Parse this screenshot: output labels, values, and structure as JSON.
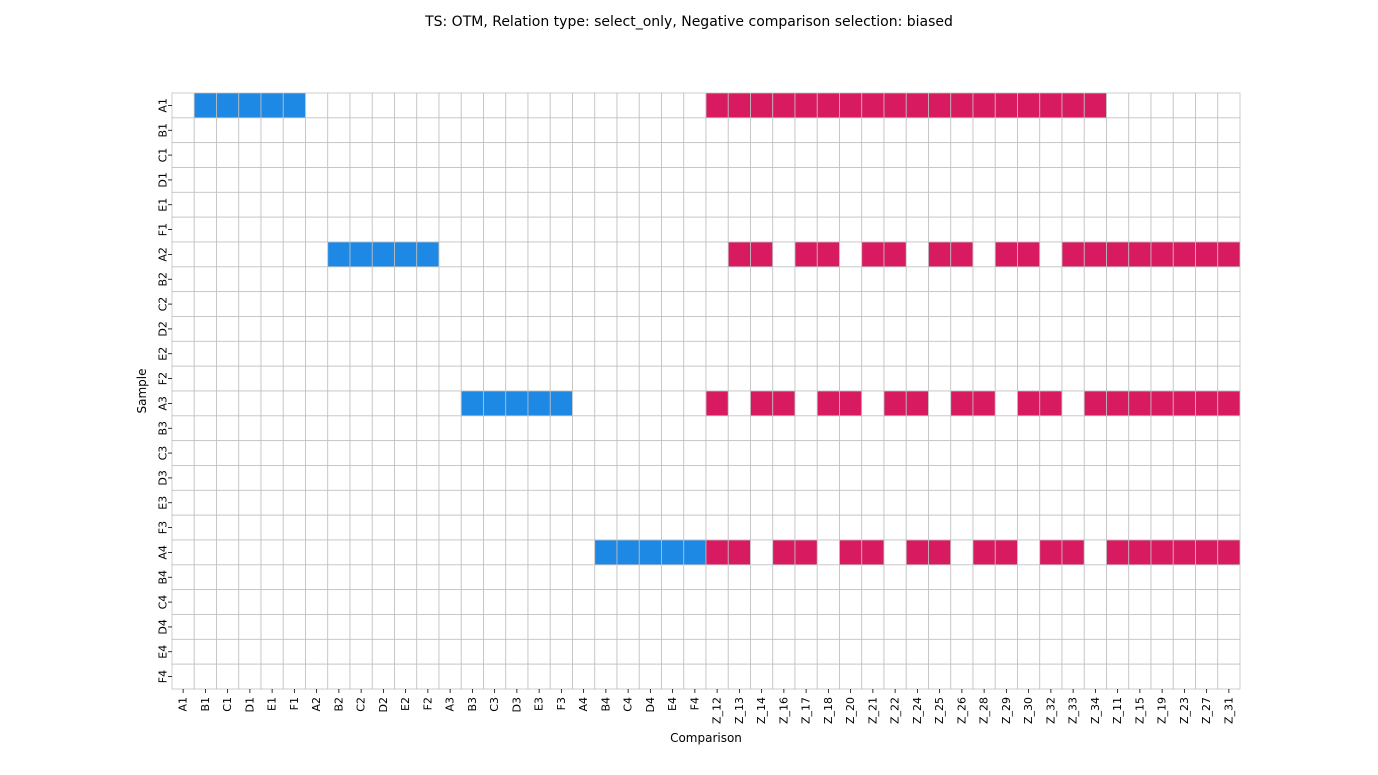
{
  "chart_data": {
    "type": "heatmap",
    "title": "TS: OTM, Relation type: select_only, Negative comparison selection: biased",
    "xlabel": "Comparison",
    "ylabel": "Sample",
    "x_categories": [
      "A1",
      "B1",
      "C1",
      "D1",
      "E1",
      "F1",
      "A2",
      "B2",
      "C2",
      "D2",
      "E2",
      "F2",
      "A3",
      "B3",
      "C3",
      "D3",
      "E3",
      "F3",
      "A4",
      "B4",
      "C4",
      "D4",
      "E4",
      "F4",
      "Z_12",
      "Z_13",
      "Z_14",
      "Z_16",
      "Z_17",
      "Z_18",
      "Z_20",
      "Z_21",
      "Z_22",
      "Z_24",
      "Z_25",
      "Z_26",
      "Z_28",
      "Z_29",
      "Z_30",
      "Z_32",
      "Z_33",
      "Z_34",
      "Z_11",
      "Z_15",
      "Z_19",
      "Z_23",
      "Z_27",
      "Z_31"
    ],
    "y_categories": [
      "A1",
      "B1",
      "C1",
      "D1",
      "E1",
      "F1",
      "A2",
      "B2",
      "C2",
      "D2",
      "E2",
      "F2",
      "A3",
      "B3",
      "C3",
      "D3",
      "E3",
      "F3",
      "A4",
      "B4",
      "C4",
      "D4",
      "E4",
      "F4"
    ],
    "value_legend": {
      "0": "empty",
      "1": "positive",
      "2": "negative"
    },
    "colors": {
      "empty": "#ffffff",
      "positive": "#1e88e5",
      "negative": "#d81b60",
      "grid": "#c0c0c0"
    },
    "grid": true,
    "rows": [
      [
        0,
        1,
        1,
        1,
        1,
        1,
        0,
        0,
        0,
        0,
        0,
        0,
        0,
        0,
        0,
        0,
        0,
        0,
        0,
        0,
        0,
        0,
        0,
        0,
        2,
        2,
        2,
        2,
        2,
        2,
        2,
        2,
        2,
        2,
        2,
        2,
        2,
        2,
        2,
        2,
        2,
        2,
        0,
        0,
        0,
        0,
        0,
        0
      ],
      [
        0,
        0,
        0,
        0,
        0,
        0,
        0,
        0,
        0,
        0,
        0,
        0,
        0,
        0,
        0,
        0,
        0,
        0,
        0,
        0,
        0,
        0,
        0,
        0,
        0,
        0,
        0,
        0,
        0,
        0,
        0,
        0,
        0,
        0,
        0,
        0,
        0,
        0,
        0,
        0,
        0,
        0,
        0,
        0,
        0,
        0,
        0,
        0
      ],
      [
        0,
        0,
        0,
        0,
        0,
        0,
        0,
        0,
        0,
        0,
        0,
        0,
        0,
        0,
        0,
        0,
        0,
        0,
        0,
        0,
        0,
        0,
        0,
        0,
        0,
        0,
        0,
        0,
        0,
        0,
        0,
        0,
        0,
        0,
        0,
        0,
        0,
        0,
        0,
        0,
        0,
        0,
        0,
        0,
        0,
        0,
        0,
        0
      ],
      [
        0,
        0,
        0,
        0,
        0,
        0,
        0,
        0,
        0,
        0,
        0,
        0,
        0,
        0,
        0,
        0,
        0,
        0,
        0,
        0,
        0,
        0,
        0,
        0,
        0,
        0,
        0,
        0,
        0,
        0,
        0,
        0,
        0,
        0,
        0,
        0,
        0,
        0,
        0,
        0,
        0,
        0,
        0,
        0,
        0,
        0,
        0,
        0
      ],
      [
        0,
        0,
        0,
        0,
        0,
        0,
        0,
        0,
        0,
        0,
        0,
        0,
        0,
        0,
        0,
        0,
        0,
        0,
        0,
        0,
        0,
        0,
        0,
        0,
        0,
        0,
        0,
        0,
        0,
        0,
        0,
        0,
        0,
        0,
        0,
        0,
        0,
        0,
        0,
        0,
        0,
        0,
        0,
        0,
        0,
        0,
        0,
        0
      ],
      [
        0,
        0,
        0,
        0,
        0,
        0,
        0,
        0,
        0,
        0,
        0,
        0,
        0,
        0,
        0,
        0,
        0,
        0,
        0,
        0,
        0,
        0,
        0,
        0,
        0,
        0,
        0,
        0,
        0,
        0,
        0,
        0,
        0,
        0,
        0,
        0,
        0,
        0,
        0,
        0,
        0,
        0,
        0,
        0,
        0,
        0,
        0,
        0
      ],
      [
        0,
        0,
        0,
        0,
        0,
        0,
        0,
        1,
        1,
        1,
        1,
        1,
        0,
        0,
        0,
        0,
        0,
        0,
        0,
        0,
        0,
        0,
        0,
        0,
        0,
        2,
        2,
        0,
        2,
        2,
        0,
        2,
        2,
        0,
        2,
        2,
        0,
        2,
        2,
        0,
        2,
        2,
        2,
        2,
        2,
        2,
        2,
        2
      ],
      [
        0,
        0,
        0,
        0,
        0,
        0,
        0,
        0,
        0,
        0,
        0,
        0,
        0,
        0,
        0,
        0,
        0,
        0,
        0,
        0,
        0,
        0,
        0,
        0,
        0,
        0,
        0,
        0,
        0,
        0,
        0,
        0,
        0,
        0,
        0,
        0,
        0,
        0,
        0,
        0,
        0,
        0,
        0,
        0,
        0,
        0,
        0,
        0
      ],
      [
        0,
        0,
        0,
        0,
        0,
        0,
        0,
        0,
        0,
        0,
        0,
        0,
        0,
        0,
        0,
        0,
        0,
        0,
        0,
        0,
        0,
        0,
        0,
        0,
        0,
        0,
        0,
        0,
        0,
        0,
        0,
        0,
        0,
        0,
        0,
        0,
        0,
        0,
        0,
        0,
        0,
        0,
        0,
        0,
        0,
        0,
        0,
        0
      ],
      [
        0,
        0,
        0,
        0,
        0,
        0,
        0,
        0,
        0,
        0,
        0,
        0,
        0,
        0,
        0,
        0,
        0,
        0,
        0,
        0,
        0,
        0,
        0,
        0,
        0,
        0,
        0,
        0,
        0,
        0,
        0,
        0,
        0,
        0,
        0,
        0,
        0,
        0,
        0,
        0,
        0,
        0,
        0,
        0,
        0,
        0,
        0,
        0
      ],
      [
        0,
        0,
        0,
        0,
        0,
        0,
        0,
        0,
        0,
        0,
        0,
        0,
        0,
        0,
        0,
        0,
        0,
        0,
        0,
        0,
        0,
        0,
        0,
        0,
        0,
        0,
        0,
        0,
        0,
        0,
        0,
        0,
        0,
        0,
        0,
        0,
        0,
        0,
        0,
        0,
        0,
        0,
        0,
        0,
        0,
        0,
        0,
        0
      ],
      [
        0,
        0,
        0,
        0,
        0,
        0,
        0,
        0,
        0,
        0,
        0,
        0,
        0,
        0,
        0,
        0,
        0,
        0,
        0,
        0,
        0,
        0,
        0,
        0,
        0,
        0,
        0,
        0,
        0,
        0,
        0,
        0,
        0,
        0,
        0,
        0,
        0,
        0,
        0,
        0,
        0,
        0,
        0,
        0,
        0,
        0,
        0,
        0
      ],
      [
        0,
        0,
        0,
        0,
        0,
        0,
        0,
        0,
        0,
        0,
        0,
        0,
        0,
        1,
        1,
        1,
        1,
        1,
        0,
        0,
        0,
        0,
        0,
        0,
        2,
        0,
        2,
        2,
        0,
        2,
        2,
        0,
        2,
        2,
        0,
        2,
        2,
        0,
        2,
        2,
        0,
        2,
        2,
        2,
        2,
        2,
        2,
        2
      ],
      [
        0,
        0,
        0,
        0,
        0,
        0,
        0,
        0,
        0,
        0,
        0,
        0,
        0,
        0,
        0,
        0,
        0,
        0,
        0,
        0,
        0,
        0,
        0,
        0,
        0,
        0,
        0,
        0,
        0,
        0,
        0,
        0,
        0,
        0,
        0,
        0,
        0,
        0,
        0,
        0,
        0,
        0,
        0,
        0,
        0,
        0,
        0,
        0
      ],
      [
        0,
        0,
        0,
        0,
        0,
        0,
        0,
        0,
        0,
        0,
        0,
        0,
        0,
        0,
        0,
        0,
        0,
        0,
        0,
        0,
        0,
        0,
        0,
        0,
        0,
        0,
        0,
        0,
        0,
        0,
        0,
        0,
        0,
        0,
        0,
        0,
        0,
        0,
        0,
        0,
        0,
        0,
        0,
        0,
        0,
        0,
        0,
        0
      ],
      [
        0,
        0,
        0,
        0,
        0,
        0,
        0,
        0,
        0,
        0,
        0,
        0,
        0,
        0,
        0,
        0,
        0,
        0,
        0,
        0,
        0,
        0,
        0,
        0,
        0,
        0,
        0,
        0,
        0,
        0,
        0,
        0,
        0,
        0,
        0,
        0,
        0,
        0,
        0,
        0,
        0,
        0,
        0,
        0,
        0,
        0,
        0,
        0
      ],
      [
        0,
        0,
        0,
        0,
        0,
        0,
        0,
        0,
        0,
        0,
        0,
        0,
        0,
        0,
        0,
        0,
        0,
        0,
        0,
        0,
        0,
        0,
        0,
        0,
        0,
        0,
        0,
        0,
        0,
        0,
        0,
        0,
        0,
        0,
        0,
        0,
        0,
        0,
        0,
        0,
        0,
        0,
        0,
        0,
        0,
        0,
        0,
        0
      ],
      [
        0,
        0,
        0,
        0,
        0,
        0,
        0,
        0,
        0,
        0,
        0,
        0,
        0,
        0,
        0,
        0,
        0,
        0,
        0,
        0,
        0,
        0,
        0,
        0,
        0,
        0,
        0,
        0,
        0,
        0,
        0,
        0,
        0,
        0,
        0,
        0,
        0,
        0,
        0,
        0,
        0,
        0,
        0,
        0,
        0,
        0,
        0,
        0
      ],
      [
        0,
        0,
        0,
        0,
        0,
        0,
        0,
        0,
        0,
        0,
        0,
        0,
        0,
        0,
        0,
        0,
        0,
        0,
        0,
        1,
        1,
        1,
        1,
        1,
        2,
        2,
        0,
        2,
        2,
        0,
        2,
        2,
        0,
        2,
        2,
        0,
        2,
        2,
        0,
        2,
        2,
        0,
        2,
        2,
        2,
        2,
        2,
        2
      ],
      [
        0,
        0,
        0,
        0,
        0,
        0,
        0,
        0,
        0,
        0,
        0,
        0,
        0,
        0,
        0,
        0,
        0,
        0,
        0,
        0,
        0,
        0,
        0,
        0,
        0,
        0,
        0,
        0,
        0,
        0,
        0,
        0,
        0,
        0,
        0,
        0,
        0,
        0,
        0,
        0,
        0,
        0,
        0,
        0,
        0,
        0,
        0,
        0
      ],
      [
        0,
        0,
        0,
        0,
        0,
        0,
        0,
        0,
        0,
        0,
        0,
        0,
        0,
        0,
        0,
        0,
        0,
        0,
        0,
        0,
        0,
        0,
        0,
        0,
        0,
        0,
        0,
        0,
        0,
        0,
        0,
        0,
        0,
        0,
        0,
        0,
        0,
        0,
        0,
        0,
        0,
        0,
        0,
        0,
        0,
        0,
        0,
        0
      ],
      [
        0,
        0,
        0,
        0,
        0,
        0,
        0,
        0,
        0,
        0,
        0,
        0,
        0,
        0,
        0,
        0,
        0,
        0,
        0,
        0,
        0,
        0,
        0,
        0,
        0,
        0,
        0,
        0,
        0,
        0,
        0,
        0,
        0,
        0,
        0,
        0,
        0,
        0,
        0,
        0,
        0,
        0,
        0,
        0,
        0,
        0,
        0,
        0
      ],
      [
        0,
        0,
        0,
        0,
        0,
        0,
        0,
        0,
        0,
        0,
        0,
        0,
        0,
        0,
        0,
        0,
        0,
        0,
        0,
        0,
        0,
        0,
        0,
        0,
        0,
        0,
        0,
        0,
        0,
        0,
        0,
        0,
        0,
        0,
        0,
        0,
        0,
        0,
        0,
        0,
        0,
        0,
        0,
        0,
        0,
        0,
        0,
        0
      ],
      [
        0,
        0,
        0,
        0,
        0,
        0,
        0,
        0,
        0,
        0,
        0,
        0,
        0,
        0,
        0,
        0,
        0,
        0,
        0,
        0,
        0,
        0,
        0,
        0,
        0,
        0,
        0,
        0,
        0,
        0,
        0,
        0,
        0,
        0,
        0,
        0,
        0,
        0,
        0,
        0,
        0,
        0,
        0,
        0,
        0,
        0,
        0,
        0
      ]
    ]
  }
}
